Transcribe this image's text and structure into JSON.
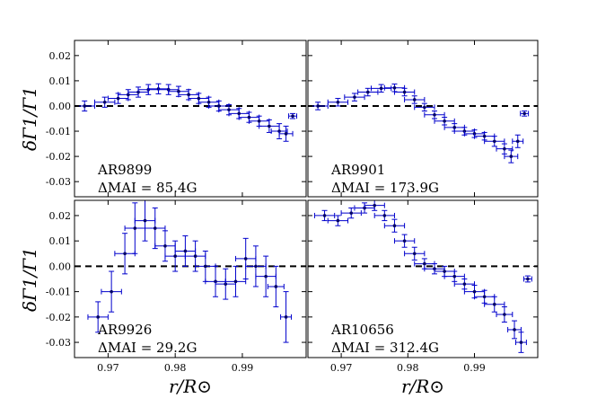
{
  "chart_data": {
    "type": "scatter",
    "title": "",
    "xlabel": "r/R⊙",
    "ylabel": "δΓ1/Γ1",
    "xlim": [
      0.965,
      0.9995
    ],
    "ylim": [
      -0.036,
      0.026
    ],
    "xticks": [
      0.97,
      0.98,
      0.99
    ],
    "xtick_labels": [
      "0.97",
      "0.98",
      "0.99"
    ],
    "yticks": [
      0.02,
      0.01,
      0.0,
      -0.01,
      -0.02,
      -0.03
    ],
    "ytick_labels": [
      "0.02",
      "0.01",
      "0.00",
      "-0.01",
      "-0.02",
      "-0.03"
    ],
    "reference_line": {
      "y": 0.0,
      "style": "dashed",
      "color": "#000000"
    },
    "marker_color": "#0000cc",
    "point_color": "#000066",
    "panels": [
      {
        "name": "AR9899",
        "mai_label": "ΔMAI = 85.4G",
        "x": [
          0.9665,
          0.9695,
          0.9715,
          0.973,
          0.9745,
          0.976,
          0.9775,
          0.979,
          0.9805,
          0.982,
          0.9835,
          0.985,
          0.9865,
          0.988,
          0.9895,
          0.991,
          0.9925,
          0.994,
          0.9955,
          0.9965,
          0.9975
        ],
        "y": [
          0.0,
          0.0015,
          0.003,
          0.0045,
          0.0055,
          0.0065,
          0.0068,
          0.0065,
          0.0058,
          0.0045,
          0.003,
          0.0015,
          0.0,
          -0.0015,
          -0.003,
          -0.0045,
          -0.006,
          -0.008,
          -0.01,
          -0.011,
          -0.004
        ],
        "xerr": [
          0.0015,
          0.0015,
          0.0015,
          0.0015,
          0.0015,
          0.0015,
          0.0015,
          0.0015,
          0.0015,
          0.0015,
          0.0015,
          0.0015,
          0.0015,
          0.0015,
          0.0015,
          0.0015,
          0.0015,
          0.0015,
          0.0012,
          0.001,
          0.0006
        ],
        "yerr": [
          0.002,
          0.002,
          0.002,
          0.002,
          0.002,
          0.002,
          0.002,
          0.002,
          0.002,
          0.002,
          0.002,
          0.002,
          0.002,
          0.002,
          0.002,
          0.002,
          0.002,
          0.0025,
          0.003,
          0.003,
          0.001
        ]
      },
      {
        "name": "AR9901",
        "mai_label": "ΔMAI = 173.9G",
        "x": [
          0.9665,
          0.9695,
          0.972,
          0.974,
          0.976,
          0.978,
          0.9795,
          0.981,
          0.9825,
          0.984,
          0.9855,
          0.987,
          0.9885,
          0.99,
          0.9915,
          0.993,
          0.9945,
          0.9955,
          0.9965,
          0.9975
        ],
        "y": [
          0.0,
          0.0015,
          0.0035,
          0.0055,
          0.007,
          0.0072,
          0.0055,
          0.0025,
          -0.0005,
          -0.0035,
          -0.006,
          -0.0085,
          -0.01,
          -0.011,
          -0.012,
          -0.014,
          -0.017,
          -0.02,
          -0.014,
          -0.003
        ],
        "xerr": [
          0.0015,
          0.0015,
          0.0015,
          0.0015,
          0.0015,
          0.0015,
          0.0015,
          0.0015,
          0.0015,
          0.0015,
          0.0015,
          0.0015,
          0.0015,
          0.0015,
          0.0015,
          0.0015,
          0.0012,
          0.001,
          0.0008,
          0.0006
        ],
        "yerr": [
          0.0015,
          0.0015,
          0.0015,
          0.0015,
          0.0015,
          0.0015,
          0.0015,
          0.0015,
          0.0015,
          0.0015,
          0.0015,
          0.0015,
          0.0015,
          0.0015,
          0.0015,
          0.002,
          0.002,
          0.0025,
          0.0025,
          0.001
        ]
      },
      {
        "name": "AR9926",
        "mai_label": "ΔMAI = 29.2G",
        "x": [
          0.9685,
          0.9705,
          0.9725,
          0.974,
          0.9755,
          0.977,
          0.9785,
          0.98,
          0.9815,
          0.983,
          0.9845,
          0.986,
          0.9875,
          0.989,
          0.9905,
          0.992,
          0.9935,
          0.995,
          0.9965
        ],
        "y": [
          -0.02,
          -0.01,
          0.005,
          0.015,
          0.018,
          0.015,
          0.008,
          0.004,
          0.006,
          0.004,
          0.0,
          -0.006,
          -0.007,
          -0.006,
          0.003,
          0.0,
          -0.004,
          -0.008,
          -0.02
        ],
        "xerr": [
          0.0015,
          0.0015,
          0.0015,
          0.0015,
          0.0015,
          0.0015,
          0.0015,
          0.0015,
          0.0015,
          0.0015,
          0.0015,
          0.0015,
          0.0015,
          0.0015,
          0.0015,
          0.0015,
          0.0015,
          0.0012,
          0.0008
        ],
        "yerr": [
          0.006,
          0.008,
          0.008,
          0.01,
          0.008,
          0.008,
          0.006,
          0.006,
          0.006,
          0.006,
          0.006,
          0.006,
          0.006,
          0.006,
          0.008,
          0.008,
          0.008,
          0.008,
          0.01
        ]
      },
      {
        "name": "AR10656",
        "mai_label": "ΔMAI = 312.4G",
        "x": [
          0.9675,
          0.9695,
          0.9715,
          0.9735,
          0.975,
          0.9765,
          0.978,
          0.9795,
          0.981,
          0.9825,
          0.984,
          0.9855,
          0.987,
          0.9885,
          0.99,
          0.9915,
          0.993,
          0.9945,
          0.996,
          0.997,
          0.998
        ],
        "y": [
          0.02,
          0.018,
          0.021,
          0.023,
          0.024,
          0.02,
          0.016,
          0.01,
          0.005,
          0.001,
          -0.001,
          -0.002,
          -0.004,
          -0.007,
          -0.01,
          -0.012,
          -0.015,
          -0.019,
          -0.025,
          -0.03,
          -0.005
        ],
        "xerr": [
          0.0015,
          0.0015,
          0.0015,
          0.0015,
          0.0015,
          0.0015,
          0.0015,
          0.0015,
          0.0015,
          0.0015,
          0.0015,
          0.0015,
          0.0015,
          0.0015,
          0.0015,
          0.0015,
          0.0015,
          0.0012,
          0.001,
          0.0008,
          0.0006
        ],
        "yerr": [
          0.002,
          0.002,
          0.002,
          0.002,
          0.002,
          0.002,
          0.0025,
          0.0025,
          0.0025,
          0.002,
          0.002,
          0.002,
          0.002,
          0.002,
          0.0025,
          0.0025,
          0.003,
          0.003,
          0.0035,
          0.004,
          0.0012
        ]
      }
    ]
  }
}
